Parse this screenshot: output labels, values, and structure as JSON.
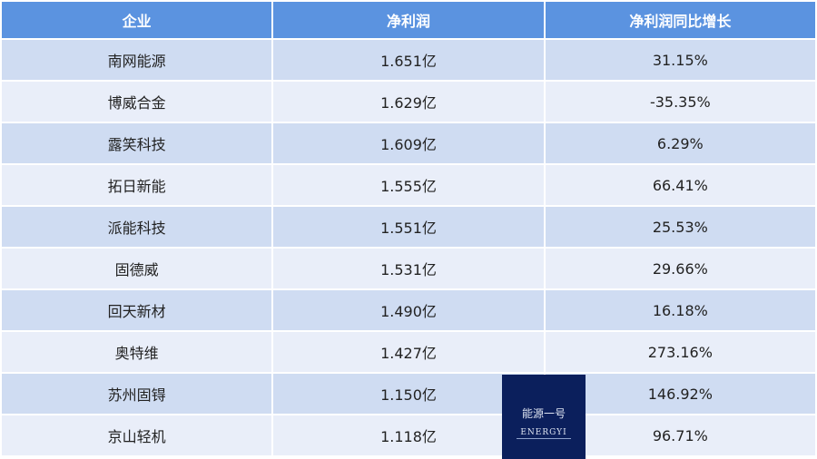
{
  "headers": [
    "企业",
    "净利润",
    "净利润同比增长"
  ],
  "rows": [
    [
      "南网能源",
      "1.651亿",
      "31.15%"
    ],
    [
      "博威合金",
      "1.629亿",
      "-35.35%"
    ],
    [
      "露笑科技",
      "1.609亿",
      "6.29%"
    ],
    [
      "拓日新能",
      "1.555亿",
      "66.41%"
    ],
    [
      "派能科技",
      "1.551亿",
      "25.53%"
    ],
    [
      "固德威",
      "1.531亿",
      "29.66%"
    ],
    [
      "回天新材",
      "1.490亿",
      "16.18%"
    ],
    [
      "奥特维",
      "1.427亿",
      "273.16%"
    ],
    [
      "苏州固锝",
      "1.150亿",
      "146.92%"
    ],
    [
      "京山轻机",
      "1.118亿",
      "96.71%"
    ]
  ],
  "logo": {
    "cn": "能源一号",
    "en": "ENERGYI"
  },
  "colors": {
    "header": "#5b93e0",
    "row_odd": "#cfdcf2",
    "row_even": "#e9eef9",
    "logo_bg": "#0b1f5c"
  }
}
